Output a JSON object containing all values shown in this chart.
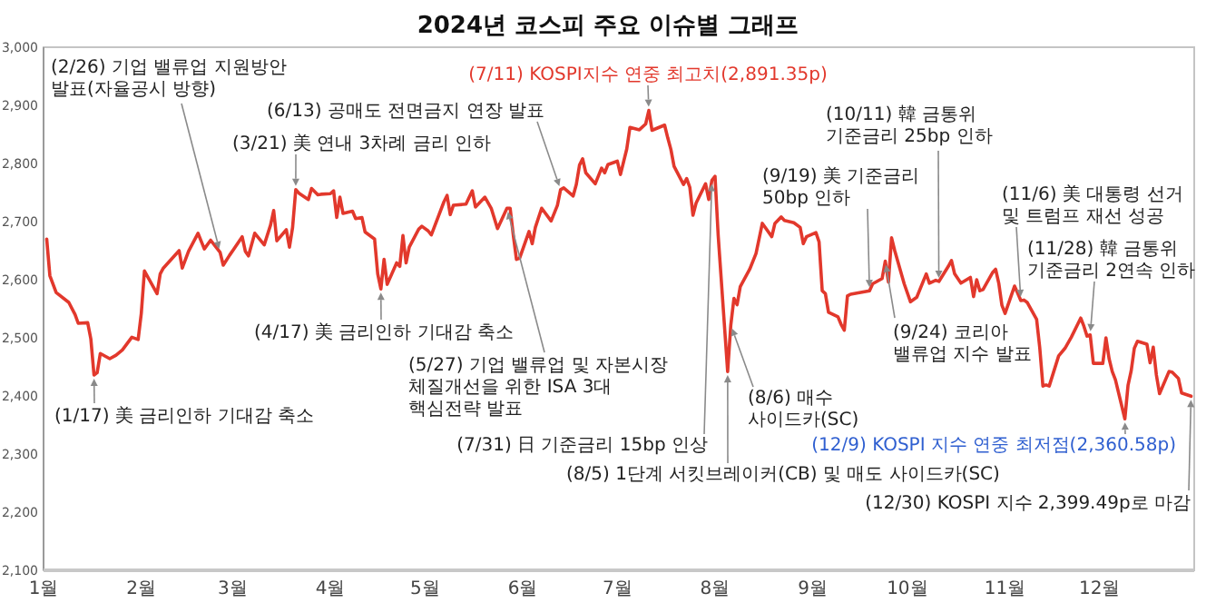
{
  "chart_data": {
    "type": "line",
    "title": "2024년 코스피 주요 이슈별 그래프",
    "x": [
      "2024-01-02",
      "2024-01-03",
      "2024-01-05",
      "2024-01-09",
      "2024-01-11",
      "2024-01-12",
      "2024-01-15",
      "2024-01-16",
      "2024-01-17",
      "2024-01-18",
      "2024-01-19",
      "2024-01-22",
      "2024-01-24",
      "2024-01-26",
      "2024-01-29",
      "2024-01-31",
      "2024-02-01",
      "2024-02-02",
      "2024-02-06",
      "2024-02-07",
      "2024-02-08",
      "2024-02-13",
      "2024-02-14",
      "2024-02-16",
      "2024-02-19",
      "2024-02-21",
      "2024-02-23",
      "2024-02-26",
      "2024-02-27",
      "2024-02-29",
      "2024-03-04",
      "2024-03-05",
      "2024-03-06",
      "2024-03-08",
      "2024-03-11",
      "2024-03-13",
      "2024-03-14",
      "2024-03-15",
      "2024-03-18",
      "2024-03-19",
      "2024-03-20",
      "2024-03-21",
      "2024-03-22",
      "2024-03-25",
      "2024-03-26",
      "2024-03-28",
      "2024-03-29",
      "2024-04-01",
      "2024-04-02",
      "2024-04-03",
      "2024-04-04",
      "2024-04-05",
      "2024-04-08",
      "2024-04-09",
      "2024-04-11",
      "2024-04-12",
      "2024-04-15",
      "2024-04-16",
      "2024-04-17",
      "2024-04-18",
      "2024-04-19",
      "2024-04-22",
      "2024-04-23",
      "2024-04-24",
      "2024-04-25",
      "2024-04-26",
      "2024-04-29",
      "2024-04-30",
      "2024-05-02",
      "2024-05-03",
      "2024-05-07",
      "2024-05-08",
      "2024-05-09",
      "2024-05-10",
      "2024-05-14",
      "2024-05-16",
      "2024-05-17",
      "2024-05-20",
      "2024-05-22",
      "2024-05-24",
      "2024-05-27",
      "2024-05-28",
      "2024-05-29",
      "2024-05-30",
      "2024-05-31",
      "2024-06-03",
      "2024-06-04",
      "2024-06-05",
      "2024-06-07",
      "2024-06-10",
      "2024-06-12",
      "2024-06-13",
      "2024-06-14",
      "2024-06-17",
      "2024-06-18",
      "2024-06-19",
      "2024-06-20",
      "2024-06-21",
      "2024-06-24",
      "2024-06-26",
      "2024-06-27",
      "2024-06-28",
      "2024-07-01",
      "2024-07-02",
      "2024-07-04",
      "2024-07-05",
      "2024-07-08",
      "2024-07-10",
      "2024-07-11",
      "2024-07-12",
      "2024-07-16",
      "2024-07-17",
      "2024-07-18",
      "2024-07-19",
      "2024-07-22",
      "2024-07-23",
      "2024-07-24",
      "2024-07-25",
      "2024-07-26",
      "2024-07-29",
      "2024-07-30",
      "2024-07-31",
      "2024-08-01",
      "2024-08-02",
      "2024-08-05",
      "2024-08-06",
      "2024-08-07",
      "2024-08-08",
      "2024-08-09",
      "2024-08-12",
      "2024-08-14",
      "2024-08-16",
      "2024-08-19",
      "2024-08-20",
      "2024-08-22",
      "2024-08-23",
      "2024-08-26",
      "2024-08-28",
      "2024-08-29",
      "2024-08-30",
      "2024-09-02",
      "2024-09-03",
      "2024-09-04",
      "2024-09-05",
      "2024-09-06",
      "2024-09-09",
      "2024-09-10",
      "2024-09-11",
      "2024-09-12",
      "2024-09-13",
      "2024-09-19",
      "2024-09-20",
      "2024-09-23",
      "2024-09-24",
      "2024-09-25",
      "2024-09-26",
      "2024-09-27",
      "2024-09-30",
      "2024-10-02",
      "2024-10-04",
      "2024-10-07",
      "2024-10-08",
      "2024-10-10",
      "2024-10-11",
      "2024-10-14",
      "2024-10-15",
      "2024-10-16",
      "2024-10-18",
      "2024-10-21",
      "2024-10-22",
      "2024-10-23",
      "2024-10-24",
      "2024-10-25",
      "2024-10-28",
      "2024-10-29",
      "2024-10-30",
      "2024-10-31",
      "2024-11-01",
      "2024-11-04",
      "2024-11-05",
      "2024-11-06",
      "2024-11-07",
      "2024-11-08",
      "2024-11-11",
      "2024-11-12",
      "2024-11-13",
      "2024-11-14",
      "2024-11-15",
      "2024-11-18",
      "2024-11-20",
      "2024-11-22",
      "2024-11-25",
      "2024-11-26",
      "2024-11-27",
      "2024-11-28",
      "2024-11-29",
      "2024-12-02",
      "2024-12-03",
      "2024-12-04",
      "2024-12-05",
      "2024-12-06",
      "2024-12-09",
      "2024-12-10",
      "2024-12-11",
      "2024-12-12",
      "2024-12-13",
      "2024-12-16",
      "2024-12-17",
      "2024-12-18",
      "2024-12-19",
      "2024-12-20",
      "2024-12-23",
      "2024-12-24",
      "2024-12-26",
      "2024-12-27",
      "2024-12-30"
    ],
    "values": [
      2670,
      2607,
      2578,
      2561,
      2540,
      2525,
      2526,
      2498,
      2436,
      2440,
      2473,
      2464,
      2470,
      2479,
      2501,
      2497,
      2542,
      2615,
      2576,
      2610,
      2620,
      2650,
      2620,
      2649,
      2680,
      2653,
      2668,
      2647,
      2625,
      2642,
      2674,
      2649,
      2641,
      2680,
      2660,
      2694,
      2719,
      2667,
      2686,
      2656,
      2690,
      2755,
      2749,
      2738,
      2757,
      2746,
      2747,
      2748,
      2753,
      2707,
      2742,
      2714,
      2718,
      2705,
      2707,
      2682,
      2670,
      2610,
      2584,
      2635,
      2592,
      2629,
      2623,
      2676,
      2629,
      2656,
      2687,
      2692,
      2684,
      2677,
      2734,
      2745,
      2712,
      2728,
      2730,
      2753,
      2725,
      2742,
      2723,
      2688,
      2723,
      2723,
      2677,
      2635,
      2637,
      2683,
      2662,
      2690,
      2723,
      2701,
      2728,
      2755,
      2758,
      2744,
      2764,
      2797,
      2808,
      2784,
      2765,
      2792,
      2784,
      2798,
      2804,
      2781,
      2825,
      2862,
      2858,
      2868,
      2891.35,
      2857,
      2866,
      2844,
      2824,
      2795,
      2764,
      2774,
      2759,
      2711,
      2732,
      2765,
      2738,
      2771,
      2778,
      2676,
      2442,
      2522,
      2568,
      2557,
      2588,
      2618,
      2645,
      2697,
      2674,
      2697,
      2708,
      2702,
      2698,
      2690,
      2662,
      2674,
      2681,
      2665,
      2581,
      2576,
      2544,
      2536,
      2523,
      2513,
      2572,
      2575,
      2581,
      2593,
      2602,
      2632,
      2596,
      2672,
      2650,
      2593,
      2562,
      2570,
      2610,
      2594,
      2599,
      2597,
      2623,
      2633,
      2610,
      2594,
      2604,
      2571,
      2600,
      2581,
      2583,
      2612,
      2618,
      2594,
      2556,
      2542,
      2589,
      2577,
      2564,
      2565,
      2561,
      2532,
      2483,
      2417,
      2419,
      2417,
      2469,
      2482,
      2501,
      2534,
      2520,
      2503,
      2505,
      2456,
      2456,
      2500,
      2464,
      2442,
      2428,
      2360.58,
      2418,
      2443,
      2482,
      2494,
      2489,
      2457,
      2484,
      2436,
      2404,
      2442,
      2441,
      2430,
      2405,
      2399.49
    ],
    "color": "#e2382c",
    "xlim": [
      "2024-01-01",
      "2024-12-31"
    ],
    "xticks": [
      {
        "value": "2024-01-01",
        "label": "1월"
      },
      {
        "value": "2024-02-01",
        "label": "2월"
      },
      {
        "value": "2024-03-01",
        "label": "3월"
      },
      {
        "value": "2024-04-01",
        "label": "4월"
      },
      {
        "value": "2024-05-01",
        "label": "5월"
      },
      {
        "value": "2024-06-01",
        "label": "6월"
      },
      {
        "value": "2024-07-01",
        "label": "7월"
      },
      {
        "value": "2024-08-01",
        "label": "8월"
      },
      {
        "value": "2024-09-01",
        "label": "9월"
      },
      {
        "value": "2024-10-01",
        "label": "10월"
      },
      {
        "value": "2024-11-01",
        "label": "11월"
      },
      {
        "value": "2024-12-01",
        "label": "12월"
      }
    ],
    "ylim": [
      2100,
      3000
    ],
    "yticks": [
      {
        "value": 2100,
        "label": "2,100"
      },
      {
        "value": 2200,
        "label": "2,200"
      },
      {
        "value": 2300,
        "label": "2,300"
      },
      {
        "value": 2400,
        "label": "2,400"
      },
      {
        "value": 2500,
        "label": "2,500"
      },
      {
        "value": 2600,
        "label": "2,600"
      },
      {
        "value": 2700,
        "label": "2,700"
      },
      {
        "value": 2800,
        "label": "2,800"
      },
      {
        "value": 2900,
        "label": "2,900"
      },
      {
        "value": 3000,
        "label": "3,000"
      }
    ],
    "annotations": [
      {
        "text": "(1/17) 美 금리인하 기대감 축소",
        "x": "2024-01-17",
        "y": 2436
      },
      {
        "text": "(2/26) 기업 밸류업 지원방안 발표(자율공시 방향)",
        "x": "2024-02-26",
        "y": 2647
      },
      {
        "text": "(3/21) 美 연내 3차례 금리 인하",
        "x": "2024-03-21",
        "y": 2755
      },
      {
        "text": "(4/17) 美 금리인하 기대감 축소",
        "x": "2024-04-17",
        "y": 2584
      },
      {
        "text": "(5/27) 기업 밸류업 및 자본시장 체질개선을 위한 ISA 3대 핵심전략 발표",
        "x": "2024-05-27",
        "y": 2723
      },
      {
        "text": "(6/13) 공매도 전면금지 연장 발표",
        "x": "2024-06-13",
        "y": 2755
      },
      {
        "text": "(7/11) KOSPI지수 연중 최고치(2,891.35p)",
        "x": "2024-07-11",
        "y": 2891.35
      },
      {
        "text": "(7/31) 日 기준금리 15bp 인상",
        "x": "2024-07-31",
        "y": 2771
      },
      {
        "text": "(8/5) 1단계 서킷브레이커(CB) 및 매도 사이드카(SC)",
        "x": "2024-08-05",
        "y": 2442
      },
      {
        "text": "(8/6) 매수 사이드카(SC)",
        "x": "2024-08-06",
        "y": 2522
      },
      {
        "text": "(9/19) 美 기준금리 50bp 인하",
        "x": "2024-09-19",
        "y": 2581
      },
      {
        "text": "(9/24) 코리아 밸류업 지수 발표",
        "x": "2024-09-24",
        "y": 2632
      },
      {
        "text": "(10/11) 韓 금통위 기준금리 25bp 인하",
        "x": "2024-10-11",
        "y": 2597
      },
      {
        "text": "(11/6) 美 대통령 선거 및 트럼프 재선 성공",
        "x": "2024-11-06",
        "y": 2564
      },
      {
        "text": "(11/28) 韓 금통위 기준금리 2연속 인하",
        "x": "2024-11-28",
        "y": 2505
      },
      {
        "text": "(12/9) KOSPI 지수 연중 최저점(2,360.58p)",
        "x": "2024-12-09",
        "y": 2360.58
      },
      {
        "text": "(12/30) KOSPI 지수 2,399.49p로 마감",
        "x": "2024-12-30",
        "y": 2399.49
      }
    ]
  }
}
